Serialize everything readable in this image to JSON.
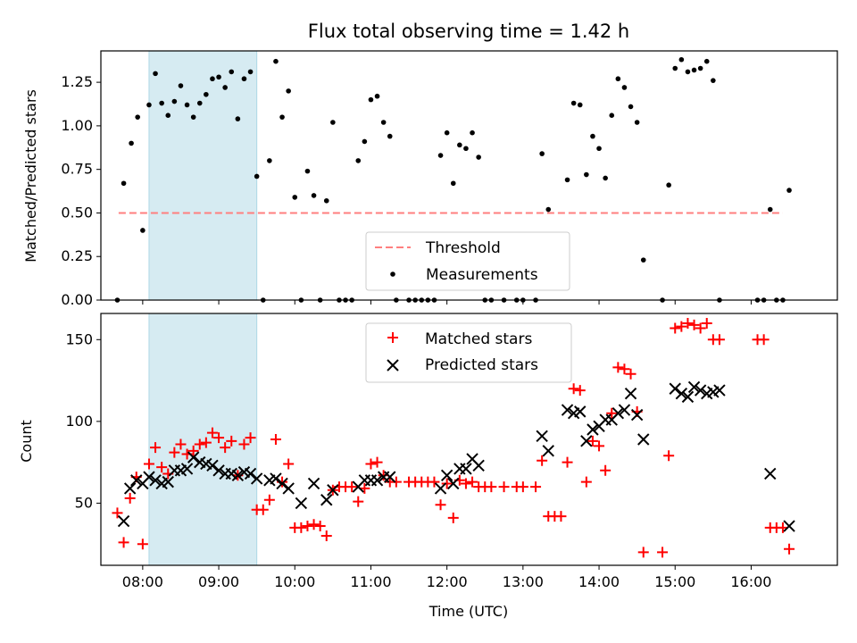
{
  "chart_data": [
    {
      "type": "scatter",
      "title": "Flux total observing time = 1.42 h",
      "xlabel": "",
      "ylabel": "Matched/Predicted stars",
      "ylim": [
        0,
        1.43
      ],
      "xlim": [
        "07:27",
        "17:08"
      ],
      "yticks": [
        "0.00",
        "0.25",
        "0.50",
        "0.75",
        "1.00",
        "1.25"
      ],
      "shaded_interval": [
        "08:05",
        "09:30"
      ],
      "threshold": {
        "name": "Threshold",
        "value": 0.5,
        "x_range": [
          "07:41",
          "16:25"
        ],
        "color": "#ff7f7f"
      },
      "series": [
        {
          "name": "Measurements",
          "color": "#000000",
          "points": [
            [
              "07:40",
              0.0
            ],
            [
              "07:45",
              0.67
            ],
            [
              "07:51",
              0.9
            ],
            [
              "07:56",
              1.05
            ],
            [
              "08:00",
              0.4
            ],
            [
              "08:05",
              1.12
            ],
            [
              "08:10",
              1.3
            ],
            [
              "08:15",
              1.13
            ],
            [
              "08:20",
              1.06
            ],
            [
              "08:25",
              1.14
            ],
            [
              "08:30",
              1.23
            ],
            [
              "08:35",
              1.12
            ],
            [
              "08:40",
              1.05
            ],
            [
              "08:45",
              1.13
            ],
            [
              "08:50",
              1.18
            ],
            [
              "08:55",
              1.27
            ],
            [
              "09:00",
              1.28
            ],
            [
              "09:05",
              1.22
            ],
            [
              "09:10",
              1.31
            ],
            [
              "09:15",
              1.04
            ],
            [
              "09:20",
              1.27
            ],
            [
              "09:25",
              1.31
            ],
            [
              "09:30",
              0.71
            ],
            [
              "09:35",
              0.0
            ],
            [
              "09:40",
              0.8
            ],
            [
              "09:45",
              1.37
            ],
            [
              "09:50",
              1.05
            ],
            [
              "09:55",
              1.2
            ],
            [
              "10:00",
              0.59
            ],
            [
              "10:05",
              0.0
            ],
            [
              "10:10",
              0.74
            ],
            [
              "10:15",
              0.6
            ],
            [
              "10:20",
              0.0
            ],
            [
              "10:25",
              0.57
            ],
            [
              "10:30",
              1.02
            ],
            [
              "10:35",
              0.0
            ],
            [
              "10:40",
              0.0
            ],
            [
              "10:45",
              0.0
            ],
            [
              "10:50",
              0.8
            ],
            [
              "10:55",
              0.91
            ],
            [
              "11:00",
              1.15
            ],
            [
              "11:05",
              1.17
            ],
            [
              "11:10",
              1.02
            ],
            [
              "11:15",
              0.94
            ],
            [
              "11:20",
              0.0
            ],
            [
              "11:30",
              0.0
            ],
            [
              "11:35",
              0.0
            ],
            [
              "11:40",
              0.0
            ],
            [
              "11:45",
              0.0
            ],
            [
              "11:50",
              0.0
            ],
            [
              "11:55",
              0.83
            ],
            [
              "12:00",
              0.96
            ],
            [
              "12:05",
              0.67
            ],
            [
              "12:10",
              0.89
            ],
            [
              "12:15",
              0.87
            ],
            [
              "12:20",
              0.96
            ],
            [
              "12:25",
              0.82
            ],
            [
              "12:30",
              0.0
            ],
            [
              "12:35",
              0.0
            ],
            [
              "12:45",
              0.0
            ],
            [
              "12:55",
              0.0
            ],
            [
              "13:00",
              0.0
            ],
            [
              "13:10",
              0.0
            ],
            [
              "13:15",
              0.84
            ],
            [
              "13:20",
              0.52
            ],
            [
              "13:35",
              0.69
            ],
            [
              "13:40",
              1.13
            ],
            [
              "13:45",
              1.12
            ],
            [
              "13:50",
              0.72
            ],
            [
              "13:55",
              0.94
            ],
            [
              "14:00",
              0.87
            ],
            [
              "14:05",
              0.7
            ],
            [
              "14:10",
              1.06
            ],
            [
              "14:15",
              1.27
            ],
            [
              "14:20",
              1.22
            ],
            [
              "14:25",
              1.11
            ],
            [
              "14:30",
              1.02
            ],
            [
              "14:35",
              0.23
            ],
            [
              "14:50",
              0.0
            ],
            [
              "14:55",
              0.66
            ],
            [
              "15:00",
              1.33
            ],
            [
              "15:05",
              1.38
            ],
            [
              "15:10",
              1.31
            ],
            [
              "15:15",
              1.32
            ],
            [
              "15:20",
              1.33
            ],
            [
              "15:25",
              1.37
            ],
            [
              "15:30",
              1.26
            ],
            [
              "15:35",
              0.0
            ],
            [
              "16:05",
              0.0
            ],
            [
              "16:10",
              0.0
            ],
            [
              "16:15",
              0.52
            ],
            [
              "16:20",
              0.0
            ],
            [
              "16:25",
              0.0
            ],
            [
              "16:30",
              0.63
            ]
          ]
        }
      ],
      "legend": {
        "placement": "lower-center"
      }
    },
    {
      "type": "scatter",
      "title": "",
      "xlabel": "Time (UTC)",
      "ylabel": "Count",
      "ylim": [
        12,
        166
      ],
      "xlim": [
        "07:27",
        "17:08"
      ],
      "xticks": [
        "08:00",
        "09:00",
        "10:00",
        "11:00",
        "12:00",
        "13:00",
        "14:00",
        "15:00",
        "16:00"
      ],
      "yticks": [
        "50",
        "100",
        "150"
      ],
      "shaded_interval": [
        "08:05",
        "09:30"
      ],
      "series": [
        {
          "name": "Matched stars",
          "marker": "plus",
          "color": "#ff0000",
          "points": [
            [
              "07:40",
              44
            ],
            [
              "07:45",
              26
            ],
            [
              "07:50",
              53
            ],
            [
              "07:55",
              66
            ],
            [
              "08:00",
              25
            ],
            [
              "08:05",
              74
            ],
            [
              "08:10",
              84
            ],
            [
              "08:15",
              72
            ],
            [
              "08:20",
              68
            ],
            [
              "08:25",
              81
            ],
            [
              "08:30",
              86
            ],
            [
              "08:35",
              80
            ],
            [
              "08:40",
              82
            ],
            [
              "08:45",
              86
            ],
            [
              "08:50",
              87
            ],
            [
              "08:55",
              93
            ],
            [
              "09:00",
              90
            ],
            [
              "09:05",
              84
            ],
            [
              "09:10",
              88
            ],
            [
              "09:15",
              67
            ],
            [
              "09:20",
              86
            ],
            [
              "09:25",
              90
            ],
            [
              "09:30",
              46
            ],
            [
              "09:35",
              46
            ],
            [
              "09:40",
              52
            ],
            [
              "09:45",
              89
            ],
            [
              "09:50",
              63
            ],
            [
              "09:55",
              74
            ],
            [
              "10:00",
              35
            ],
            [
              "10:05",
              35
            ],
            [
              "10:10",
              36
            ],
            [
              "10:15",
              37
            ],
            [
              "10:20",
              36
            ],
            [
              "10:25",
              30
            ],
            [
              "10:30",
              58
            ],
            [
              "10:35",
              60
            ],
            [
              "10:40",
              60
            ],
            [
              "10:45",
              60
            ],
            [
              "10:50",
              51
            ],
            [
              "10:55",
              59
            ],
            [
              "11:00",
              74
            ],
            [
              "11:05",
              75
            ],
            [
              "11:10",
              67
            ],
            [
              "11:15",
              63
            ],
            [
              "11:20",
              63
            ],
            [
              "11:30",
              63
            ],
            [
              "11:35",
              63
            ],
            [
              "11:40",
              63
            ],
            [
              "11:45",
              63
            ],
            [
              "11:50",
              63
            ],
            [
              "11:55",
              49
            ],
            [
              "12:00",
              62
            ],
            [
              "12:05",
              41
            ],
            [
              "12:10",
              64
            ],
            [
              "12:15",
              62
            ],
            [
              "12:20",
              63
            ],
            [
              "12:25",
              60
            ],
            [
              "12:30",
              60
            ],
            [
              "12:35",
              60
            ],
            [
              "12:45",
              60
            ],
            [
              "12:55",
              60
            ],
            [
              "13:00",
              60
            ],
            [
              "13:10",
              60
            ],
            [
              "13:15",
              76
            ],
            [
              "13:20",
              42
            ],
            [
              "13:25",
              42
            ],
            [
              "13:30",
              42
            ],
            [
              "13:35",
              75
            ],
            [
              "13:40",
              120
            ],
            [
              "13:45",
              119
            ],
            [
              "13:50",
              63
            ],
            [
              "13:55",
              88
            ],
            [
              "14:00",
              85
            ],
            [
              "14:05",
              70
            ],
            [
              "14:10",
              105
            ],
            [
              "14:15",
              133
            ],
            [
              "14:20",
              132
            ],
            [
              "14:25",
              129
            ],
            [
              "14:30",
              106
            ],
            [
              "14:35",
              20
            ],
            [
              "14:50",
              20
            ],
            [
              "14:55",
              79
            ],
            [
              "15:00",
              157
            ],
            [
              "15:05",
              158
            ],
            [
              "15:10",
              160
            ],
            [
              "15:15",
              159
            ],
            [
              "15:20",
              157
            ],
            [
              "15:25",
              160
            ],
            [
              "15:30",
              150
            ],
            [
              "15:35",
              150
            ],
            [
              "16:05",
              150
            ],
            [
              "16:10",
              150
            ],
            [
              "16:15",
              35
            ],
            [
              "16:20",
              35
            ],
            [
              "16:25",
              35
            ],
            [
              "16:30",
              22
            ]
          ]
        },
        {
          "name": "Predicted stars",
          "marker": "x",
          "color": "#000000",
          "points": [
            [
              "07:45",
              39
            ],
            [
              "07:50",
              59
            ],
            [
              "07:55",
              64
            ],
            [
              "08:00",
              62
            ],
            [
              "08:05",
              66
            ],
            [
              "08:10",
              64
            ],
            [
              "08:15",
              62
            ],
            [
              "08:20",
              63
            ],
            [
              "08:25",
              70
            ],
            [
              "08:30",
              70
            ],
            [
              "08:35",
              71
            ],
            [
              "08:40",
              78
            ],
            [
              "08:45",
              75
            ],
            [
              "08:50",
              74
            ],
            [
              "08:55",
              73
            ],
            [
              "09:00",
              70
            ],
            [
              "09:05",
              68
            ],
            [
              "09:10",
              68
            ],
            [
              "09:15",
              67
            ],
            [
              "09:20",
              69
            ],
            [
              "09:25",
              68
            ],
            [
              "09:30",
              65
            ],
            [
              "09:40",
              64
            ],
            [
              "09:45",
              65
            ],
            [
              "09:50",
              62
            ],
            [
              "09:55",
              59
            ],
            [
              "10:05",
              50
            ],
            [
              "10:15",
              62
            ],
            [
              "10:25",
              52
            ],
            [
              "10:30",
              58
            ],
            [
              "10:50",
              60
            ],
            [
              "10:55",
              64
            ],
            [
              "11:00",
              64
            ],
            [
              "11:05",
              64
            ],
            [
              "11:10",
              66
            ],
            [
              "11:15",
              66
            ],
            [
              "11:55",
              59
            ],
            [
              "12:00",
              67
            ],
            [
              "12:05",
              62
            ],
            [
              "12:10",
              71
            ],
            [
              "12:15",
              71
            ],
            [
              "12:20",
              77
            ],
            [
              "12:25",
              73
            ],
            [
              "13:15",
              91
            ],
            [
              "13:20",
              82
            ],
            [
              "13:35",
              107
            ],
            [
              "13:40",
              105
            ],
            [
              "13:45",
              106
            ],
            [
              "13:50",
              88
            ],
            [
              "13:55",
              95
            ],
            [
              "14:00",
              97
            ],
            [
              "14:05",
              101
            ],
            [
              "14:10",
              101
            ],
            [
              "14:15",
              105
            ],
            [
              "14:20",
              107
            ],
            [
              "14:25",
              117
            ],
            [
              "14:30",
              104
            ],
            [
              "14:35",
              89
            ],
            [
              "15:00",
              120
            ],
            [
              "15:05",
              117
            ],
            [
              "15:10",
              115
            ],
            [
              "15:15",
              121
            ],
            [
              "15:20",
              119
            ],
            [
              "15:25",
              117
            ],
            [
              "15:30",
              118
            ],
            [
              "15:35",
              119
            ],
            [
              "16:15",
              68
            ],
            [
              "16:30",
              36
            ]
          ]
        }
      ],
      "legend": {
        "placement": "upper-center"
      }
    }
  ]
}
